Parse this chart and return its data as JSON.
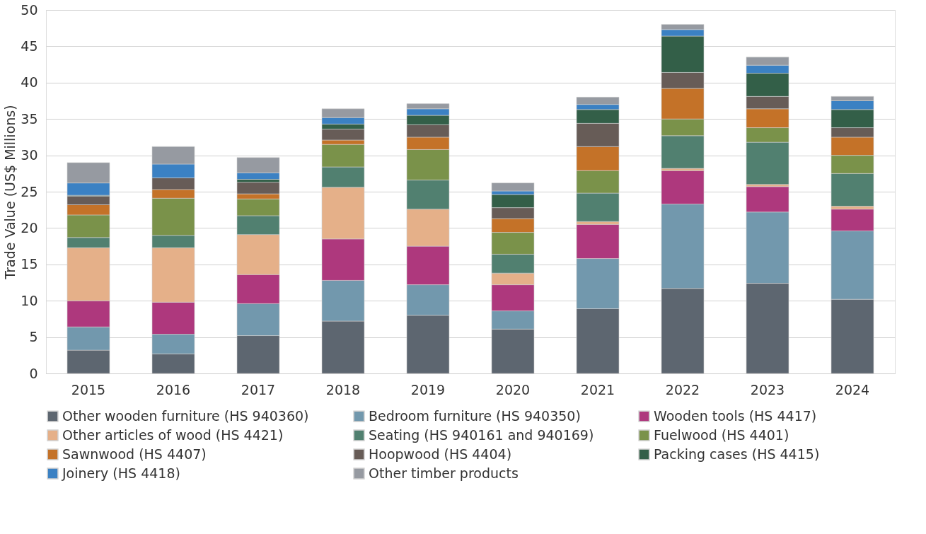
{
  "chart_data": {
    "type": "bar",
    "stacked": true,
    "ylabel": "Trade Value (US$ Millions)",
    "categories": [
      "2015",
      "2016",
      "2017",
      "2018",
      "2019",
      "2020",
      "2021",
      "2022",
      "2023",
      "2024"
    ],
    "ylim": [
      0,
      50
    ],
    "yticks": [
      0,
      5,
      10,
      15,
      20,
      25,
      30,
      35,
      40,
      45,
      50
    ],
    "grid": "y",
    "legend": "bottom",
    "series": [
      {
        "name": "Other wooden furniture (HS 940360)",
        "color": "#5d6670",
        "values": [
          3.2,
          2.7,
          5.2,
          7.2,
          8.0,
          6.1,
          8.9,
          11.7,
          12.4,
          10.2
        ]
      },
      {
        "name": "Bedroom furniture (HS 940350)",
        "color": "#7298ad",
        "values": [
          3.2,
          2.7,
          4.4,
          5.6,
          4.2,
          2.5,
          6.9,
          11.6,
          9.8,
          9.4
        ]
      },
      {
        "name": "Wooden tools (HS 4417)",
        "color": "#ae387d",
        "values": [
          3.6,
          4.4,
          4.0,
          5.7,
          5.3,
          3.6,
          4.7,
          4.6,
          3.5,
          3.0
        ]
      },
      {
        "name": "Other articles of wood (HS 4421)",
        "color": "#e5b089",
        "values": [
          7.3,
          7.5,
          5.5,
          7.1,
          5.1,
          1.6,
          0.4,
          0.3,
          0.3,
          0.4
        ]
      },
      {
        "name": "Seating (HS 940161 and 940169)",
        "color": "#518070",
        "values": [
          1.4,
          1.7,
          2.6,
          2.8,
          4.0,
          2.6,
          3.9,
          4.5,
          5.8,
          4.5
        ]
      },
      {
        "name": "Fuelwood (HS 4401)",
        "color": "#7a924a",
        "values": [
          3.1,
          5.1,
          2.3,
          3.1,
          4.2,
          3.0,
          3.1,
          2.3,
          2.0,
          2.5
        ]
      },
      {
        "name": "Sawnwood (HS 4407)",
        "color": "#c47228",
        "values": [
          1.4,
          1.2,
          0.7,
          0.6,
          1.7,
          1.9,
          3.3,
          4.2,
          2.6,
          2.5
        ]
      },
      {
        "name": "Hoopwood (HS 4404)",
        "color": "#675c57",
        "values": [
          1.2,
          1.6,
          1.6,
          1.5,
          1.7,
          1.5,
          3.2,
          2.2,
          1.7,
          1.3
        ]
      },
      {
        "name": "Packing cases (HS 4415)",
        "color": "#335f48",
        "values": [
          0.1,
          0,
          0.4,
          0.7,
          1.3,
          1.8,
          1.9,
          5.0,
          3.2,
          2.5
        ]
      },
      {
        "name": "Joinery (HS 4418)",
        "color": "#3b81c3",
        "values": [
          1.7,
          1.9,
          0.9,
          0.9,
          0.9,
          0.5,
          0.7,
          0.9,
          1.1,
          1.2
        ]
      },
      {
        "name": "Other timber products",
        "color": "#969aa1",
        "values": [
          2.8,
          2.4,
          2.1,
          1.2,
          0.7,
          1.1,
          1.0,
          0.7,
          1.1,
          0.6
        ]
      }
    ]
  }
}
